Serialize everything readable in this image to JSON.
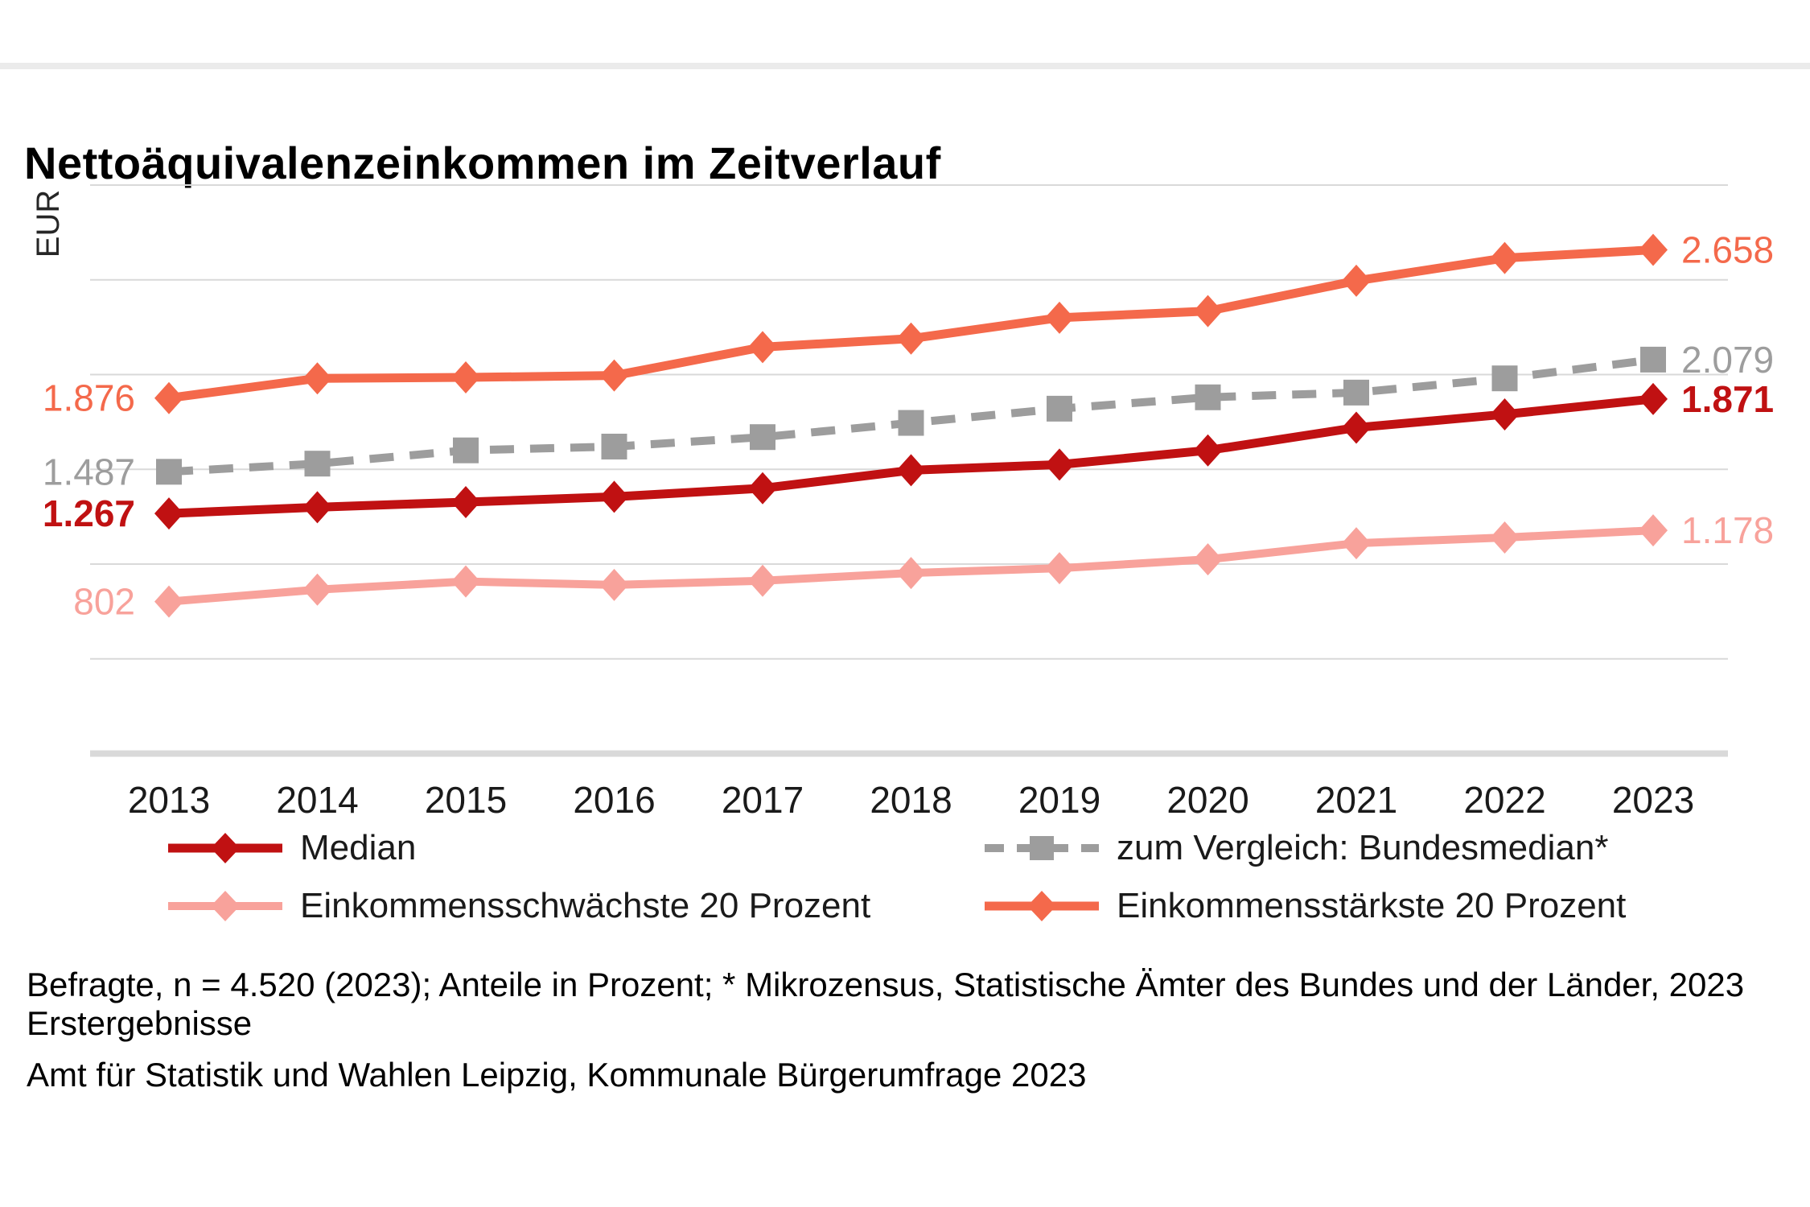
{
  "title": "Nettoäquivalenzeinkommen im Zeitverlauf",
  "y_axis_label": "EUR",
  "chart_data": {
    "type": "line",
    "x": [
      2013,
      2014,
      2015,
      2016,
      2017,
      2018,
      2019,
      2020,
      2021,
      2022,
      2023
    ],
    "ylabel": "EUR",
    "ylim": [
      0,
      3000
    ],
    "gridline_step": 500,
    "grid": true,
    "legend_position": "bottom",
    "series": [
      {
        "name": "Median",
        "color": "#c01112",
        "marker": "diamond",
        "dashed": false,
        "line_width": 11,
        "bold_labels": true,
        "values": [
          1267,
          1300,
          1327,
          1355,
          1400,
          1495,
          1525,
          1600,
          1720,
          1790,
          1871
        ],
        "first_label": "1.267",
        "last_label": "1.871"
      },
      {
        "name": "zum Vergleich: Bundesmedian*",
        "color": "#9d9d9d",
        "marker": "square",
        "dashed": true,
        "line_width": 10,
        "bold_labels": false,
        "values": [
          1487,
          1530,
          1600,
          1620,
          1670,
          1745,
          1820,
          1880,
          1905,
          1980,
          2079
        ],
        "first_label": "1.487",
        "last_label": "2.079"
      },
      {
        "name": "Einkommensschwächste 20 Prozent",
        "color": "#f8a29b",
        "marker": "diamond",
        "dashed": false,
        "line_width": 10,
        "bold_labels": false,
        "values": [
          802,
          865,
          908,
          890,
          912,
          953,
          978,
          1025,
          1110,
          1140,
          1178
        ],
        "first_label": "802",
        "last_label": "1.178"
      },
      {
        "name": "Einkommensstärkste 20 Prozent",
        "color": "#f4694b",
        "marker": "diamond",
        "dashed": false,
        "line_width": 11,
        "bold_labels": false,
        "values": [
          1876,
          1980,
          1985,
          1995,
          2145,
          2190,
          2300,
          2335,
          2495,
          2615,
          2658
        ],
        "first_label": "1.876",
        "last_label": "2.658"
      }
    ],
    "grid_color": "#d9d9d9",
    "axis_band_color": "#d9d9d9",
    "x_label_color": "#1a1a1a"
  },
  "footnotes": {
    "line1": "Befragte, n = 4.520 (2023); Anteile in Prozent; * Mikrozensus, Statistische Ämter des Bundes und der Länder, 2023",
    "line2": "Erstergebnisse",
    "source": "Amt für Statistik und Wahlen Leipzig, Kommunale Bürgerumfrage 2023"
  }
}
